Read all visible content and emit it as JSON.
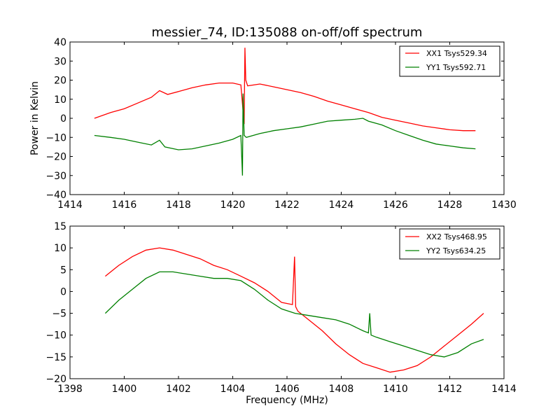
{
  "title": "messier_74, ID:135088 on-off/off spectrum",
  "chart_data": [
    {
      "type": "line",
      "ylabel": "Power in Kelvin",
      "xlabel": "",
      "xlim": [
        1414,
        1430
      ],
      "ylim": [
        -40,
        40
      ],
      "xticks": [
        1414,
        1416,
        1418,
        1420,
        1422,
        1424,
        1426,
        1428,
        1430
      ],
      "yticks": [
        -40,
        -30,
        -20,
        -10,
        0,
        10,
        20,
        30,
        40
      ],
      "legend_position": "top-right",
      "series": [
        {
          "name": "XX1 Tsys529.34",
          "color": "#ff0000",
          "x": [
            1414.9,
            1415.5,
            1416.0,
            1416.5,
            1417.0,
            1417.3,
            1417.6,
            1418.0,
            1418.5,
            1419.0,
            1419.5,
            1420.0,
            1420.3,
            1420.42,
            1420.45,
            1420.48,
            1420.55,
            1421.0,
            1421.5,
            1422.0,
            1422.5,
            1423.0,
            1423.5,
            1424.0,
            1424.5,
            1425.0,
            1425.5,
            1426.0,
            1426.5,
            1427.0,
            1427.5,
            1428.0,
            1428.5,
            1428.95
          ],
          "y": [
            0,
            3,
            5,
            8,
            11,
            14.5,
            12.5,
            14,
            16,
            17.5,
            18.5,
            18.5,
            17.5,
            -3,
            37,
            20,
            17,
            18,
            16.5,
            15,
            13.5,
            11.5,
            9,
            7,
            5,
            3,
            0.5,
            -1,
            -2.5,
            -4,
            -5,
            -6,
            -6.5,
            -6.5
          ]
        },
        {
          "name": "YY1 Tsys592.71",
          "color": "#008000",
          "x": [
            1414.9,
            1415.5,
            1416.0,
            1416.5,
            1417.0,
            1417.3,
            1417.5,
            1418.0,
            1418.5,
            1419.0,
            1419.5,
            1420.0,
            1420.3,
            1420.36,
            1420.38,
            1420.42,
            1420.5,
            1421.0,
            1421.5,
            1422.0,
            1422.5,
            1423.0,
            1423.5,
            1424.0,
            1424.5,
            1424.8,
            1425.0,
            1425.5,
            1426.0,
            1426.5,
            1427.0,
            1427.5,
            1428.0,
            1428.5,
            1428.95
          ],
          "y": [
            -9,
            -10,
            -11,
            -12.5,
            -14,
            -11.5,
            -15,
            -16.5,
            -16,
            -14.5,
            -13,
            -11,
            -9,
            -30,
            13,
            -9,
            -10,
            -8,
            -6.5,
            -5.5,
            -4.5,
            -3,
            -1.5,
            -1,
            -0.5,
            0,
            -1.5,
            -3.5,
            -6.5,
            -9,
            -11.5,
            -13.5,
            -14.5,
            -15.5,
            -16
          ]
        }
      ]
    },
    {
      "type": "line",
      "ylabel": "",
      "xlabel": "Frequency (MHz)",
      "xlim": [
        1398,
        1414
      ],
      "ylim": [
        -20,
        15
      ],
      "xticks": [
        1398,
        1400,
        1402,
        1404,
        1406,
        1408,
        1410,
        1412,
        1414
      ],
      "yticks": [
        -20,
        -15,
        -10,
        -5,
        0,
        5,
        10,
        15
      ],
      "legend_position": "top-right",
      "series": [
        {
          "name": "XX2 Tsys468.95",
          "color": "#ff0000",
          "x": [
            1399.3,
            1399.8,
            1400.3,
            1400.8,
            1401.3,
            1401.8,
            1402.3,
            1402.8,
            1403.3,
            1403.8,
            1404.3,
            1404.8,
            1405.3,
            1405.8,
            1406.2,
            1406.28,
            1406.32,
            1406.4,
            1406.8,
            1407.3,
            1407.8,
            1408.3,
            1408.8,
            1409.3,
            1409.8,
            1410.3,
            1410.8,
            1411.3,
            1411.8,
            1412.3,
            1412.8,
            1413.25
          ],
          "y": [
            3.5,
            6,
            8,
            9.5,
            10,
            9.5,
            8.5,
            7.5,
            6,
            5,
            3.5,
            2,
            0,
            -2.5,
            -3,
            8,
            -3.5,
            -4.5,
            -6.5,
            -9,
            -12,
            -14.5,
            -16.5,
            -17.5,
            -18.5,
            -18,
            -17,
            -15,
            -12.5,
            -10,
            -7.5,
            -5
          ]
        },
        {
          "name": "YY2 Tsys634.25",
          "color": "#008000",
          "x": [
            1399.3,
            1399.8,
            1400.3,
            1400.8,
            1401.3,
            1401.8,
            1402.3,
            1402.8,
            1403.3,
            1403.8,
            1404.3,
            1404.8,
            1405.3,
            1405.8,
            1406.3,
            1406.8,
            1407.3,
            1407.8,
            1408.3,
            1408.8,
            1409.0,
            1409.05,
            1409.1,
            1409.3,
            1409.8,
            1410.3,
            1410.8,
            1411.3,
            1411.8,
            1412.3,
            1412.8,
            1413.25
          ],
          "y": [
            -5,
            -2,
            0.5,
            3,
            4.5,
            4.5,
            4,
            3.5,
            3,
            3,
            2.5,
            0.5,
            -2,
            -4,
            -5,
            -5.5,
            -6,
            -6.5,
            -7.5,
            -9,
            -9.5,
            -5,
            -10,
            -10.5,
            -11.5,
            -12.5,
            -13.5,
            -14.5,
            -15,
            -14,
            -12,
            -11
          ]
        }
      ]
    }
  ]
}
